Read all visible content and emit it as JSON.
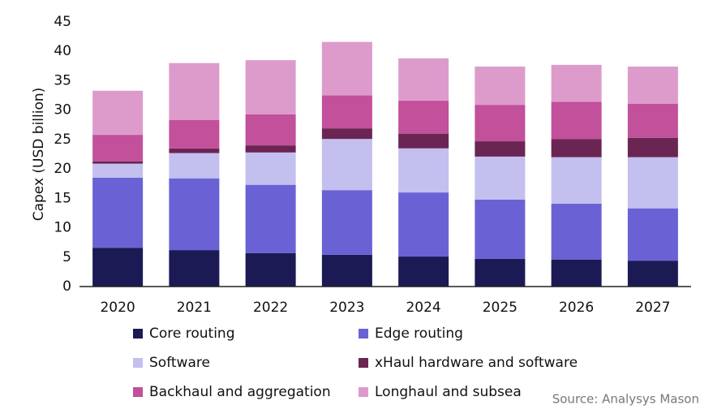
{
  "chart_data": {
    "type": "stacked_bar",
    "y_label": "Capex (USD billion)",
    "source": "Source: Analysys Mason",
    "categories": [
      "2020",
      "2021",
      "2022",
      "2023",
      "2024",
      "2025",
      "2026",
      "2027"
    ],
    "series": [
      {
        "name": "Core routing",
        "color": "#1c1a55",
        "values": [
          6.6,
          6.2,
          5.7,
          5.4,
          5.1,
          4.7,
          4.6,
          4.4
        ]
      },
      {
        "name": "Edge routing",
        "color": "#6a62d4",
        "values": [
          11.9,
          12.2,
          11.6,
          11.0,
          10.9,
          10.1,
          9.5,
          8.9
        ]
      },
      {
        "name": "Software",
        "color": "#c3bfef",
        "values": [
          2.4,
          4.3,
          5.5,
          8.7,
          7.5,
          7.3,
          7.9,
          8.7
        ]
      },
      {
        "name": "xHaul hardware and software",
        "color": "#6b2553",
        "values": [
          0.4,
          0.8,
          1.2,
          1.8,
          2.5,
          2.6,
          3.1,
          3.3
        ]
      },
      {
        "name": "Backhaul and aggregation",
        "color": "#c2509b",
        "values": [
          4.5,
          4.8,
          5.3,
          5.6,
          5.6,
          6.2,
          6.3,
          5.8
        ]
      },
      {
        "name": "Longhaul and subsea",
        "color": "#dd9bcc",
        "values": [
          7.5,
          9.7,
          9.2,
          9.1,
          7.2,
          6.5,
          6.3,
          6.3
        ]
      }
    ],
    "ylim": [
      0,
      45
    ],
    "yticks": [
      0,
      5,
      10,
      15,
      20,
      25,
      30,
      35,
      40,
      45
    ]
  }
}
